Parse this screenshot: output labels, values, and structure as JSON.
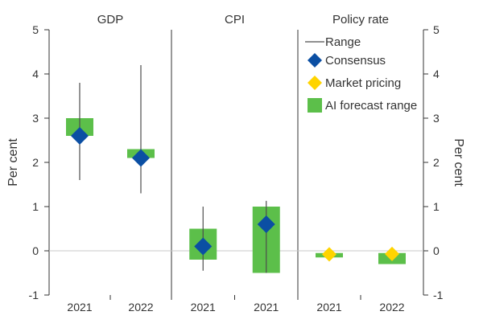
{
  "chart_data": {
    "type": "range-dot",
    "ylabel_left": "Per cent",
    "ylabel_right": "Per cent",
    "ylim": [
      -1,
      5
    ],
    "yticks": [
      5,
      4,
      3,
      2,
      1,
      0,
      -1
    ],
    "panels": [
      {
        "title": "GDP",
        "groups": [
          {
            "x": "2021",
            "range": [
              1.6,
              3.8
            ],
            "ai_range": [
              2.6,
              3.0
            ],
            "consensus": 2.6,
            "market": null
          },
          {
            "x": "2022",
            "range": [
              1.3,
              4.2
            ],
            "ai_range": [
              2.1,
              2.3
            ],
            "consensus": 2.1,
            "market": null
          }
        ]
      },
      {
        "title": "CPI",
        "groups": [
          {
            "x": "2021",
            "range": [
              -0.45,
              1.0
            ],
            "ai_range": [
              -0.2,
              0.5
            ],
            "consensus": 0.1,
            "market": null
          },
          {
            "x": "2021",
            "range": [
              -0.5,
              1.13
            ],
            "ai_range": [
              -0.5,
              1.0
            ],
            "consensus": 0.6,
            "market": null
          }
        ]
      },
      {
        "title": "Policy rate",
        "groups": [
          {
            "x": "2021",
            "range": null,
            "ai_range": [
              -0.15,
              -0.05
            ],
            "consensus": null,
            "market": -0.08
          },
          {
            "x": "2022",
            "range": null,
            "ai_range": [
              -0.3,
              -0.05
            ],
            "consensus": null,
            "market": -0.07
          }
        ]
      }
    ],
    "legend": [
      {
        "label": "Range",
        "kind": "line",
        "color": "#4d4d4d"
      },
      {
        "label": "Consensus",
        "kind": "diamond",
        "color": "#0b4fa3"
      },
      {
        "label": "Market pricing",
        "kind": "diamond",
        "color": "#ffd400"
      },
      {
        "label": "AI forecast range",
        "kind": "square",
        "color": "#5cbf4a"
      }
    ],
    "legend_position": "top-right",
    "colors": {
      "range": "#4d4d4d",
      "consensus": "#0b4fa3",
      "market": "#ffd400",
      "ai_range": "#5cbf4a",
      "gridline": "#c8c8c8",
      "axis": "#333333"
    },
    "grid": true
  }
}
